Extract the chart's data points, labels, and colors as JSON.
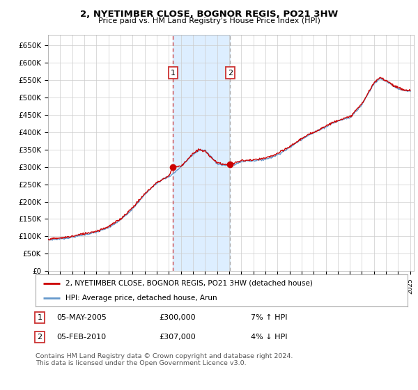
{
  "title1": "2, NYETIMBER CLOSE, BOGNOR REGIS, PO21 3HW",
  "title2": "Price paid vs. HM Land Registry's House Price Index (HPI)",
  "ylabel_ticks": [
    "£0",
    "£50K",
    "£100K",
    "£150K",
    "£200K",
    "£250K",
    "£300K",
    "£350K",
    "£400K",
    "£450K",
    "£500K",
    "£550K",
    "£600K",
    "£650K"
  ],
  "ylim": [
    0,
    680000
  ],
  "ytick_vals": [
    0,
    50000,
    100000,
    150000,
    200000,
    250000,
    300000,
    350000,
    400000,
    450000,
    500000,
    550000,
    600000,
    650000
  ],
  "x_start_year": 1995,
  "x_end_year": 2025,
  "sale1_year": 2005.35,
  "sale1_price": 300000,
  "sale1_label": "1",
  "sale1_date": "05-MAY-2005",
  "sale1_hpi_pct": "7% ↑ HPI",
  "sale2_year": 2010.08,
  "sale2_price": 307000,
  "sale2_label": "2",
  "sale2_date": "05-FEB-2010",
  "sale2_hpi_pct": "4% ↓ HPI",
  "legend_label1": "2, NYETIMBER CLOSE, BOGNOR REGIS, PO21 3HW (detached house)",
  "legend_label2": "HPI: Average price, detached house, Arun",
  "footer": "Contains HM Land Registry data © Crown copyright and database right 2024.\nThis data is licensed under the Open Government Licence v3.0.",
  "line_color_red": "#cc0000",
  "line_color_blue": "#6699cc",
  "bg_color": "#ffffff",
  "grid_color": "#cccccc",
  "shade_color": "#ddeeff",
  "hpi_curve": [
    [
      1995.0,
      90000
    ],
    [
      1995.5,
      91000
    ],
    [
      1996.0,
      93000
    ],
    [
      1996.5,
      95000
    ],
    [
      1997.0,
      98000
    ],
    [
      1997.5,
      101000
    ],
    [
      1998.0,
      105000
    ],
    [
      1998.5,
      108000
    ],
    [
      1999.0,
      112000
    ],
    [
      1999.5,
      118000
    ],
    [
      2000.0,
      125000
    ],
    [
      2000.5,
      135000
    ],
    [
      2001.0,
      148000
    ],
    [
      2001.5,
      162000
    ],
    [
      2002.0,
      180000
    ],
    [
      2002.5,
      200000
    ],
    [
      2003.0,
      220000
    ],
    [
      2003.5,
      238000
    ],
    [
      2004.0,
      252000
    ],
    [
      2004.5,
      265000
    ],
    [
      2005.0,
      272000
    ],
    [
      2005.35,
      280000
    ],
    [
      2005.5,
      285000
    ],
    [
      2006.0,
      300000
    ],
    [
      2006.5,
      318000
    ],
    [
      2007.0,
      335000
    ],
    [
      2007.5,
      348000
    ],
    [
      2008.0,
      348000
    ],
    [
      2008.5,
      330000
    ],
    [
      2009.0,
      310000
    ],
    [
      2009.5,
      305000
    ],
    [
      2010.0,
      305000
    ],
    [
      2010.08,
      300000
    ],
    [
      2010.5,
      308000
    ],
    [
      2011.0,
      315000
    ],
    [
      2011.5,
      318000
    ],
    [
      2012.0,
      318000
    ],
    [
      2012.5,
      320000
    ],
    [
      2013.0,
      322000
    ],
    [
      2013.5,
      328000
    ],
    [
      2014.0,
      335000
    ],
    [
      2014.5,
      345000
    ],
    [
      2015.0,
      355000
    ],
    [
      2015.5,
      368000
    ],
    [
      2016.0,
      380000
    ],
    [
      2016.5,
      390000
    ],
    [
      2017.0,
      398000
    ],
    [
      2017.5,
      408000
    ],
    [
      2018.0,
      415000
    ],
    [
      2018.5,
      425000
    ],
    [
      2019.0,
      432000
    ],
    [
      2019.5,
      438000
    ],
    [
      2020.0,
      442000
    ],
    [
      2020.5,
      460000
    ],
    [
      2021.0,
      480000
    ],
    [
      2021.5,
      510000
    ],
    [
      2022.0,
      540000
    ],
    [
      2022.5,
      555000
    ],
    [
      2023.0,
      548000
    ],
    [
      2023.5,
      535000
    ],
    [
      2024.0,
      525000
    ],
    [
      2024.5,
      520000
    ],
    [
      2025.0,
      518000
    ]
  ],
  "red_curve_extra": [
    [
      1995.0,
      92000
    ],
    [
      1996.0,
      95000
    ],
    [
      1997.0,
      100000
    ],
    [
      1998.0,
      108000
    ],
    [
      1999.0,
      115000
    ],
    [
      2000.0,
      128000
    ],
    [
      2001.0,
      150000
    ],
    [
      2002.0,
      183000
    ],
    [
      2003.0,
      222000
    ],
    [
      2004.0,
      255000
    ],
    [
      2005.0,
      274000
    ],
    [
      2005.35,
      300000
    ],
    [
      2006.0,
      302000
    ],
    [
      2007.0,
      338000
    ],
    [
      2007.5,
      350000
    ],
    [
      2008.0,
      345000
    ],
    [
      2009.0,
      312000
    ],
    [
      2010.0,
      305000
    ],
    [
      2010.08,
      307000
    ],
    [
      2011.0,
      318000
    ],
    [
      2012.0,
      320000
    ],
    [
      2013.0,
      325000
    ],
    [
      2014.0,
      338000
    ],
    [
      2015.0,
      358000
    ],
    [
      2016.0,
      382000
    ],
    [
      2017.0,
      400000
    ],
    [
      2018.0,
      418000
    ],
    [
      2019.0,
      435000
    ],
    [
      2020.0,
      444000
    ],
    [
      2021.0,
      482000
    ],
    [
      2022.0,
      542000
    ],
    [
      2022.5,
      558000
    ],
    [
      2023.0,
      550000
    ],
    [
      2023.5,
      538000
    ],
    [
      2024.0,
      528000
    ],
    [
      2024.5,
      522000
    ],
    [
      2025.0,
      520000
    ]
  ]
}
